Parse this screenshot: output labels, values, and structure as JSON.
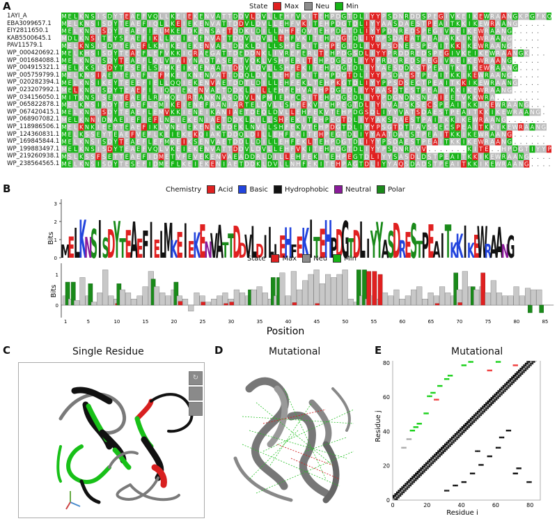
{
  "panels": {
    "a": {
      "letter": "A"
    },
    "b": {
      "letter": "B"
    },
    "c": {
      "letter": "C",
      "title": "Single Residue"
    },
    "d": {
      "letter": "D",
      "title": "Mutational"
    },
    "e": {
      "letter": "E",
      "title": "Mutational"
    }
  },
  "state_legend": {
    "label": "State",
    "items": [
      {
        "label": "Max",
        "color": "#e02020"
      },
      {
        "label": "Neu",
        "color": "#8c8c8c"
      },
      {
        "label": "Min",
        "color": "#16b416"
      }
    ]
  },
  "chemistry_legend": {
    "label": "Chemistry",
    "items": [
      {
        "label": "Acid",
        "color": "#e02020"
      },
      {
        "label": "Basic",
        "color": "#2244dd"
      },
      {
        "label": "Hydrophobic",
        "color": "#111111"
      },
      {
        "label": "Neutral",
        "color": "#8a1a9a"
      },
      {
        "label": "Polar",
        "color": "#1a8a1a"
      }
    ]
  },
  "alignment": {
    "ids": [
      "1AYI_A",
      "EBA3099657.1",
      "EIY2811650.1",
      "KAB5500645.1",
      "PAV11579.1",
      "WP_000420692.1",
      "WP_001684088.1",
      "WP_004915321.1",
      "WP_005759799.1",
      "WP_020282394.1",
      "WP_023207992.1",
      "WP_034156050.1",
      "WP_065822878.1",
      "WP_067420415.1",
      "WP_068907082.1",
      "WP_118986506.1",
      "WP_124360831.1",
      "WP_169845844.1",
      "WP_199883497.1",
      "WP_219260938.1",
      "WP_238564565.1"
    ],
    "sequences": [
      "MELKNSISDYTEAEFVQLLKEIEKENVATTDDVLDVLLEHFVKITEHPDGTDLIYYPSDNRDDSPEGIVKEIKEWRAANGKPGFKQ",
      "MELKNSISDYTEAEFIQLLKEIEKENVATTDDVLDVLLEHFVKITEHPDGTDLIYYAASDAESTPEAITKKIKEWRAANG.....",
      "MELKNSISDYTEAEFIELMKEIDKENSAETDDKLDILLNHFEQVTEHPDGTDLIYYPDNREDSPEGIVKEIKEWRAANG.....",
      "MDLKNSITEYSEAEFIKLLKEIEKENVATTDDVLDVLLEHFVKITEHPDGTDLIYYPSDAEATPEAIAKKIKEWRAANG.....",
      "MELKNSISDYTEAEFLKMIKEIEKENVAETDDKLDILLSHFEKITEHPEGTDLIYYPSDNEESPEAITKKIKEWRAANG.....",
      "MELKHSISDYTEAEFLEFVKKICRAEGATTDEDDNKLIVREFERLTEHPDGSDLIYYPRDDREDSPEGIVKEIKEWRAANGK...",
      "MELKNSISDYTEAEFLQLVTAIYNADTASEETVQKLVSHFERLTEHPDGSDLIYYPRDDREDSPEGIVKEIKEWRAANG.....",
      "MELKKSISDYTESEFLSFMKEIKKENAATTDDVLDVLLSHFEKITEHPDGTDLIYYAESDDKSTPEAITKTIKEWRAANG....",
      "MELKNSIAEYTEAEFLEFMKEIKNENVATTDDQLDVLLEHFEKITEHPDGTDLIYYPSDAESTPEAITKKIKEWRAANG.....",
      "MELKNSIKEYTEEEFIELLQQIEKENVAETDDTLDILLEHFEKLTEHPKGTDLIYYPPSDSECTPEAITKKIKEWRAANG....",
      "MELKNSISDYTEAEFILIQEIEKENVAETDDKLDILLEHFEHVAEHPDGTDLIYYAASDTESTPEAITKKIKEWRAANG.....",
      "MITKNSISEYTEAEFLRFMQEIRTANKNASDDVLNPMIEHFCSITEHPDGSDLIYYPDGNDNSNEAIEETVKKWRA........",
      "MELKNSIRDYTEAEFLEMIKEIENEFRANIARTELDVLLSHFEKVTEHPEGTDLIYYVATSKSECSPEAITKKIKEWRAANG...",
      "MELKNSISDYTEAEFLEMVKKIENEIKANIAETDEQLDVLLEHFEKVTEHPDGSDLIYYVATSDAESTPEAITKKIKEWRAANG.",
      "MELKNNIDNAEIEFIEFLNEIEKENIAETDDKLDILLSHFEKITEHPEGTDLIYYAKSDAESTPAITKKIKEWRAANG.......",
      "MELKNKIEEYTEAEFIKLVNEIEKENLKTDEKLNVLLSHFEKVTEHPDGTDLIYYPSGTDTTAVSSECSPEAITKKIKEWRAANG",
      "MELKSSEYTEAEFVEFLKEIEKEKQIAKTDDQLDILLEHFEKITEHPEGTDLIYYAATDAESTPEAITKKIKEWRAANG......",
      "MELKNSISDYTEAEFLEFMKEIKSENVAETDDLLDILLEHFEKLTEHPDGTDLIYYPSDAESTPEAITKKIKEWRAANG......",
      "MELKNSISDYTEAEFVQLVKEIEKENVATTDDVLDVLLEHFVKITEHPDGTDLIYYPSDNRGVV.......KITE..HPDGTIYYPS",
      "MSLKSSFSETTEAEFIDMETVFEVEKENVAEADDRLDILLEHFEKITEHPEGTDLIYYSASDLDSTPEAITKKIKEWRAANG....",
      "MELKNSISDYTESEFIDMEFLKEIEKENIAETDDKLDVLLNHFEKITEHPAGTDLIYYAQSDADSTPEAITKKIKEWRAANG...."
    ],
    "positions": [
      "1",
      "5",
      "10",
      "15",
      "20",
      "25",
      "30",
      "35",
      "40",
      "45",
      "50",
      "55",
      "60",
      "65",
      "70",
      "75",
      "80",
      "85"
    ]
  },
  "logo": {
    "consensus": "MELKNSISDYTEAEFIELMKEIEKENVATTDDVLDILLEHFEKITEHPDGTDLIYYASDRESTPEAITKKIKEWRAANG",
    "ylabel": "Bits",
    "yticks": [
      "0",
      "1",
      "2",
      "3"
    ]
  },
  "chart_data": {
    "type": "bar",
    "title": "",
    "xlabel": "Position",
    "ylabel": "Bits",
    "ylim": [
      -0.3,
      1.25
    ],
    "yticks": [
      "0",
      "1"
    ],
    "xticks": [
      "1",
      "5",
      "10",
      "15",
      "20",
      "25",
      "30",
      "35",
      "40",
      "45",
      "50",
      "55",
      "60",
      "65",
      "70",
      "75",
      "80",
      "85"
    ],
    "series": [
      {
        "name": "Max",
        "values": [
          0,
          0,
          0,
          0,
          0,
          0,
          0,
          0,
          0,
          0.05,
          0,
          0,
          0,
          0,
          0,
          0,
          0,
          0,
          0,
          0,
          0.12,
          0,
          0,
          0,
          0.1,
          0,
          0,
          0,
          0.05,
          0.1,
          0,
          0,
          0,
          0,
          0,
          0,
          0,
          0,
          0,
          0,
          0.08,
          0,
          0,
          0,
          0.05,
          0,
          0,
          0,
          0,
          0,
          0,
          0,
          0,
          1.1,
          1.1,
          1.0,
          0,
          0,
          0,
          0,
          0,
          0,
          0,
          0,
          0,
          0.05,
          0,
          0,
          0,
          0.08,
          0,
          0,
          0,
          1.05,
          0,
          0,
          0,
          0,
          0,
          0,
          0,
          0,
          0,
          0,
          0
        ]
      },
      {
        "name": "Neu",
        "values": [
          0.3,
          0.2,
          0.15,
          0.9,
          0.3,
          0.1,
          0.4,
          1.15,
          0.3,
          0.2,
          0.5,
          0.4,
          0.2,
          0.3,
          0.6,
          1.1,
          0.6,
          0.4,
          0.3,
          0.5,
          0.3,
          0.2,
          -0.2,
          0.4,
          0.3,
          0.1,
          0.2,
          0.3,
          0.4,
          0.2,
          0.5,
          0.4,
          0.3,
          0.5,
          0.6,
          0.4,
          0.2,
          0.3,
          1.05,
          0.3,
          1.1,
          0.5,
          0.8,
          1.0,
          1.15,
          0.7,
          1.0,
          0.9,
          1.0,
          1.15,
          0.2,
          0.1,
          0.3,
          0.2,
          0.3,
          0.2,
          0.4,
          0.3,
          0.5,
          0.2,
          0.3,
          0.5,
          0.6,
          0.2,
          0.4,
          0.3,
          0.6,
          0.4,
          0.3,
          0.5,
          1.1,
          0.6,
          0.5,
          0.6,
          0.4,
          0.8,
          0.4,
          0.3,
          0.3,
          0.6,
          0.3,
          0.55,
          0.5,
          0.5,
          0
        ]
      },
      {
        "name": "Min",
        "values": [
          0.75,
          0.75,
          0,
          0,
          0.7,
          0,
          0,
          0,
          0,
          0.7,
          0,
          0,
          0,
          0,
          0,
          0.85,
          0,
          0,
          0,
          0.75,
          0,
          0,
          0,
          0,
          0,
          0,
          0,
          0,
          0,
          0,
          0,
          0,
          0.5,
          0,
          0,
          0,
          0.9,
          0.9,
          0,
          0,
          0,
          0,
          0,
          0,
          0,
          0,
          0,
          0,
          0,
          0,
          0,
          1.15,
          1.15,
          0,
          0,
          0,
          0,
          0,
          0,
          0,
          0,
          0,
          0,
          0,
          0,
          0,
          0,
          0,
          1.05,
          0,
          0,
          0.6,
          0,
          0,
          0,
          0,
          0,
          0,
          0,
          0,
          0,
          -0.25,
          0,
          -0.25,
          0
        ]
      }
    ]
  },
  "contact_map": {
    "xlabel": "Residue i",
    "ylabel": "Residue j",
    "ticks": [
      "0",
      "20",
      "40",
      "60",
      "80"
    ]
  },
  "structure_controls": {
    "buttons": [
      "↻",
      "",
      ""
    ]
  }
}
